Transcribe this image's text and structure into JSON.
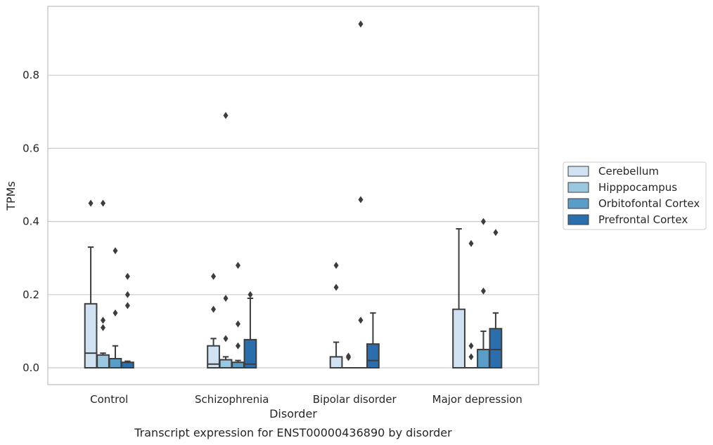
{
  "chart_data": {
    "type": "box",
    "title": "",
    "caption": "Transcript expression for ENST00000436890 by disorder",
    "xlabel": "Disorder",
    "ylabel": "TPMs",
    "ylim": [
      -0.045,
      0.985
    ],
    "yticks": [
      "0.0",
      "0.2",
      "0.4",
      "0.6",
      "0.8"
    ],
    "categories": [
      "Control",
      "Schizophrenia",
      "Bipolar disorder",
      "Major depression"
    ],
    "grid": true,
    "legend_position": "right",
    "series": [
      {
        "name": "Cerebellum",
        "color": "#d0e1f2",
        "boxes": [
          {
            "whislo": 0.0,
            "q1": 0.0,
            "med": 0.04,
            "q3": 0.175,
            "whishi": 0.33,
            "fliers": [
              0.45
            ]
          },
          {
            "whislo": 0.0,
            "q1": 0.0,
            "med": 0.01,
            "q3": 0.06,
            "whishi": 0.08,
            "fliers": [
              0.16,
              0.25
            ]
          },
          {
            "whislo": 0.0,
            "q1": 0.0,
            "med": 0.0,
            "q3": 0.03,
            "whishi": 0.07,
            "fliers": [
              0.22,
              0.28
            ]
          },
          {
            "whislo": 0.0,
            "q1": 0.0,
            "med": 0.0,
            "q3": 0.16,
            "whishi": 0.38,
            "fliers": []
          }
        ]
      },
      {
        "name": "Hipppocampus",
        "color": "#9ac8e0",
        "boxes": [
          {
            "whislo": 0.0,
            "q1": 0.0,
            "med": 0.0,
            "q3": 0.035,
            "whishi": 0.04,
            "fliers": [
              0.11,
              0.13,
              0.45
            ]
          },
          {
            "whislo": 0.0,
            "q1": 0.0,
            "med": 0.0,
            "q3": 0.022,
            "whishi": 0.03,
            "fliers": [
              0.08,
              0.19,
              0.69
            ]
          },
          {
            "whislo": 0.0,
            "q1": 0.0,
            "med": 0.0,
            "q3": 0.0,
            "whishi": 0.0,
            "fliers": [
              0.028,
              0.032
            ]
          },
          {
            "whislo": 0.0,
            "q1": 0.0,
            "med": 0.0,
            "q3": 0.0,
            "whishi": 0.0,
            "fliers": [
              0.03,
              0.06,
              0.34
            ]
          }
        ]
      },
      {
        "name": "Orbitofontal Cortex",
        "color": "#5b9dc9",
        "boxes": [
          {
            "whislo": 0.0,
            "q1": 0.0,
            "med": 0.0,
            "q3": 0.025,
            "whishi": 0.06,
            "fliers": [
              0.15,
              0.32
            ]
          },
          {
            "whislo": 0.0,
            "q1": 0.0,
            "med": 0.0,
            "q3": 0.015,
            "whishi": 0.02,
            "fliers": [
              0.06,
              0.12,
              0.28
            ]
          },
          {
            "whislo": 0.0,
            "q1": 0.0,
            "med": 0.0,
            "q3": 0.0,
            "whishi": 0.0,
            "fliers": [
              0.13,
              0.46,
              0.94
            ]
          },
          {
            "whislo": 0.0,
            "q1": 0.0,
            "med": 0.0,
            "q3": 0.05,
            "whishi": 0.1,
            "fliers": [
              0.21,
              0.4
            ]
          }
        ]
      },
      {
        "name": "Prefrontal Cortex",
        "color": "#2a6ead",
        "boxes": [
          {
            "whislo": 0.0,
            "q1": 0.0,
            "med": 0.0,
            "q3": 0.015,
            "whishi": 0.018,
            "fliers": [
              0.17,
              0.2,
              0.25
            ]
          },
          {
            "whislo": 0.0,
            "q1": 0.0,
            "med": 0.01,
            "q3": 0.077,
            "whishi": 0.19,
            "fliers": [
              0.2
            ]
          },
          {
            "whislo": 0.0,
            "q1": 0.0,
            "med": 0.02,
            "q3": 0.065,
            "whishi": 0.15,
            "fliers": []
          },
          {
            "whislo": 0.0,
            "q1": 0.0,
            "med": 0.05,
            "q3": 0.107,
            "whishi": 0.15,
            "fliers": [
              0.37
            ]
          }
        ]
      }
    ]
  }
}
